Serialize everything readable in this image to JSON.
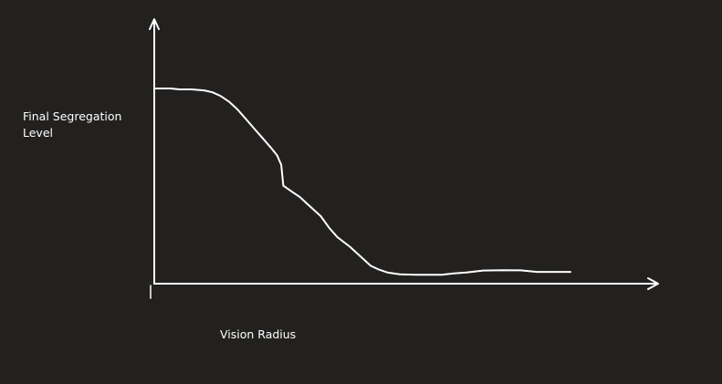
{
  "chart_data": {
    "type": "line",
    "title": "",
    "xlabel": "Vision Radius",
    "ylabel": "Final Segregation\nLevel",
    "xlim": [
      0,
      100
    ],
    "ylim": [
      0,
      100
    ],
    "grid": false,
    "legend": "none",
    "colors": {
      "background": "#222120",
      "foreground": "#ffffff"
    },
    "series": [
      {
        "values": [
          [
            0,
            100
          ],
          [
            4,
            100
          ],
          [
            6,
            99.5
          ],
          [
            9,
            99.5
          ],
          [
            12,
            99
          ],
          [
            14,
            98
          ],
          [
            16,
            96
          ],
          [
            18,
            93
          ],
          [
            20,
            89
          ],
          [
            22,
            84
          ],
          [
            24,
            79
          ],
          [
            26,
            74
          ],
          [
            28,
            69
          ],
          [
            29.5,
            65
          ],
          [
            30.5,
            60
          ],
          [
            31,
            49
          ],
          [
            33,
            46
          ],
          [
            35,
            43
          ],
          [
            37,
            39
          ],
          [
            40,
            33
          ],
          [
            42,
            27
          ],
          [
            44,
            22
          ],
          [
            47,
            17
          ],
          [
            50,
            11
          ],
          [
            52,
            7
          ],
          [
            54,
            5
          ],
          [
            56,
            3.5
          ],
          [
            59,
            2.5
          ],
          [
            63,
            2.3
          ],
          [
            69,
            2.3
          ],
          [
            72,
            3
          ],
          [
            75,
            3.5
          ],
          [
            79,
            4.5
          ],
          [
            84,
            4.7
          ],
          [
            88,
            4.6
          ],
          [
            92,
            3.8
          ],
          [
            100,
            3.8
          ]
        ]
      }
    ]
  }
}
